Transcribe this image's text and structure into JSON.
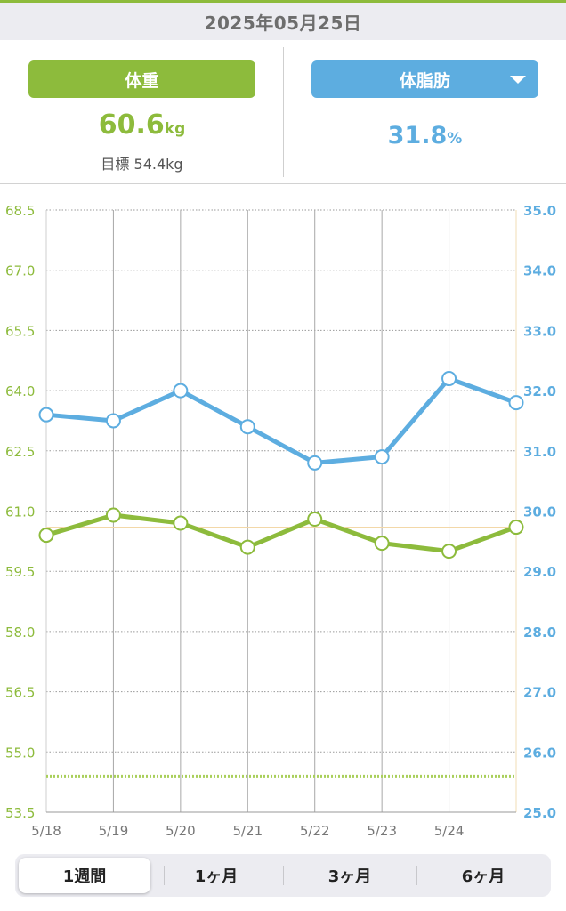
{
  "header": {
    "date": "2025年05月25日"
  },
  "weight": {
    "label": "体重",
    "value": "60.6",
    "unit": "kg",
    "goal_text": "目標 54.4kg"
  },
  "body_fat": {
    "label": "体脂肪",
    "value": "31.8",
    "unit": "%"
  },
  "period_tabs": [
    {
      "label": "1週間",
      "active": true
    },
    {
      "label": "1ヶ月",
      "active": false
    },
    {
      "label": "3ヶ月",
      "active": false
    },
    {
      "label": "6ヶ月",
      "active": false
    }
  ],
  "colors": {
    "weight": "#8dbb3c",
    "body_fat": "#5dade0",
    "goal_line": "#a9cf5b",
    "current_weight_line": "#f3d8a8"
  },
  "chart_data": {
    "type": "line",
    "x": [
      "5/18",
      "5/19",
      "5/20",
      "5/21",
      "5/22",
      "5/23",
      "5/24",
      "5/25"
    ],
    "x_tick_labels": [
      "5/18",
      "5/19",
      "5/20",
      "5/21",
      "5/22",
      "5/23",
      "5/24"
    ],
    "series": [
      {
        "axis": "left",
        "values": [
          60.4,
          60.9,
          60.7,
          60.1,
          60.8,
          60.2,
          60.0,
          60.6
        ]
      },
      {
        "axis": "right",
        "values": [
          31.6,
          31.5,
          32.0,
          31.4,
          30.8,
          30.9,
          32.2,
          31.8
        ]
      }
    ],
    "left_axis": {
      "ylim": [
        53.5,
        68.5
      ],
      "ticks": [
        "53.5",
        "55.0",
        "56.5",
        "58.0",
        "59.5",
        "61.0",
        "62.5",
        "64.0",
        "65.5",
        "67.0",
        "68.5"
      ]
    },
    "right_axis": {
      "ylim": [
        25.0,
        35.0
      ],
      "ticks": [
        "25.0",
        "26.0",
        "27.0",
        "28.0",
        "29.0",
        "30.0",
        "31.0",
        "32.0",
        "33.0",
        "34.0",
        "35.0"
      ]
    },
    "reference_lines": [
      {
        "axis": "left",
        "value": 54.4,
        "style": "dotted"
      },
      {
        "axis": "left",
        "value": 60.6,
        "style": "solid"
      }
    ],
    "grid": true
  }
}
